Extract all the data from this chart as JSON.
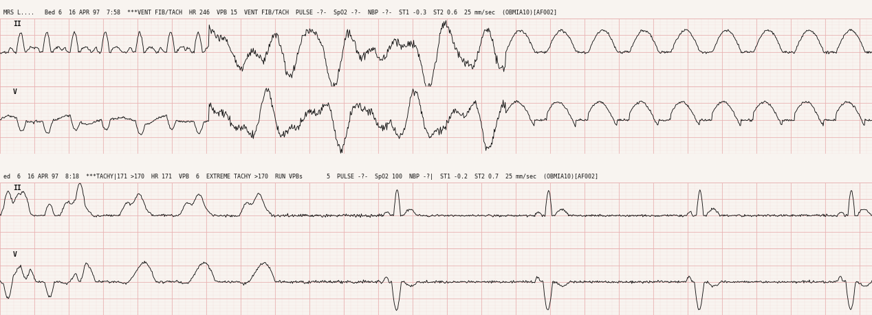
{
  "background_color": "#f8f4f0",
  "grid_color_major": "#e8b0b0",
  "grid_color_minor": "#f2d8d8",
  "line_color": "#111111",
  "text_color": "#111111",
  "strip1_header": "MRS L....   Bed 6  16 APR 97  7:58  ***VENT FIB/TACH  HR 246  VPB 15  VENT FIB/TACH  PULSE -?-  SpO2 -?-  NBP -?-  ST1 -0.3  ST2 0.6  25 mm/sec  (OBMIA10)[AF002]",
  "strip2_header": "ed  6  16 APR 97  8:18  ***TACHY|171 >170  HR 171  VPB  6  EXTREME TACHY >170  RUN VPBs       5  PULSE -?-  SpO2 100  NBP -?|  ST1 -0.2  ST2 0.7  25 mm/sec  (OBMIA10)[AF002]",
  "lead1_label_strip1": "II",
  "lead2_label_strip1": "V",
  "lead1_label_strip2": "II",
  "lead2_label_strip2": "V",
  "header_fontsize": 6.0,
  "label_fontsize": 7.0,
  "figsize": [
    12.68,
    4.6
  ],
  "dpi": 100
}
